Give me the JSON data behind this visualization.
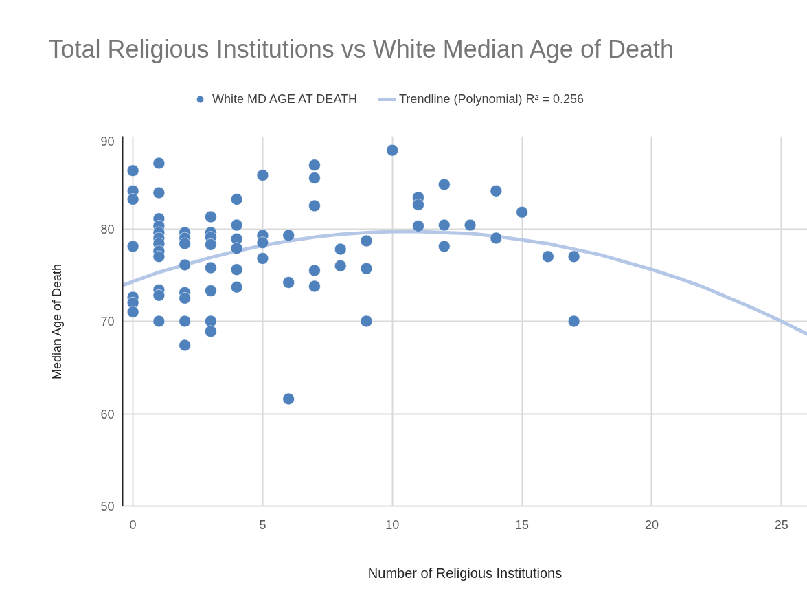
{
  "chart_data": {
    "type": "scatter",
    "title": "Total Religious Institutions vs White Median Age of Death",
    "xlabel": "Number of Religious Institutions",
    "ylabel": "Median Age of Death",
    "xlim": [
      -0.4,
      26
    ],
    "ylim": [
      50,
      90
    ],
    "xticks": [
      0,
      5,
      10,
      15,
      20,
      25
    ],
    "yticks": [
      50,
      60,
      70,
      80,
      90
    ],
    "grid": true,
    "legend": "top",
    "series": [
      {
        "name": "White MD AGE AT DEATH",
        "color": "#4f81bd",
        "marker": "circle",
        "x": [
          0,
          0,
          0,
          0,
          0,
          0,
          0,
          1,
          1,
          1,
          1,
          1,
          1,
          1,
          1,
          1,
          1,
          1,
          1,
          2,
          2,
          2,
          2,
          2,
          2,
          2,
          2,
          3,
          3,
          3,
          3,
          3,
          3,
          3,
          3,
          4,
          4,
          4,
          4,
          4,
          4,
          5,
          5,
          5,
          5,
          6,
          6,
          6,
          7,
          7,
          7,
          7,
          7,
          8,
          8,
          9,
          9,
          9,
          10,
          11,
          11,
          11,
          12,
          12,
          12,
          13,
          14,
          14,
          15,
          16,
          17,
          17
        ],
        "values": [
          86.3,
          84.1,
          83.2,
          78.1,
          72.6,
          72.0,
          71.0,
          87.1,
          83.9,
          81.1,
          80.3,
          79.6,
          79.0,
          78.4,
          77.6,
          77.0,
          73.4,
          72.8,
          70.0,
          79.6,
          79.0,
          78.4,
          76.1,
          73.1,
          72.5,
          70.0,
          67.4,
          81.3,
          79.6,
          79.1,
          78.3,
          75.8,
          73.3,
          70.0,
          68.9,
          83.2,
          80.4,
          78.9,
          77.9,
          75.6,
          73.7,
          85.8,
          79.3,
          78.5,
          76.8,
          79.3,
          74.2,
          61.6,
          86.9,
          85.5,
          82.5,
          75.5,
          73.8,
          77.8,
          76.0,
          78.7,
          75.7,
          70.0,
          88.5,
          83.4,
          82.6,
          80.3,
          84.8,
          80.4,
          78.1,
          80.4,
          84.1,
          79.0,
          81.8,
          77.0,
          77.0,
          70.0
        ]
      },
      {
        "name": "Trendline (Polynomial) R² = 0.256",
        "color": "#b4c7e7",
        "type": "line",
        "marker": "none",
        "x": [
          -0.4,
          0,
          1,
          2,
          3,
          4,
          5,
          6,
          7,
          8,
          9,
          10,
          11,
          12,
          13,
          14,
          15,
          16,
          17,
          18,
          19,
          20,
          21,
          22,
          23,
          24,
          25,
          26
        ],
        "values": [
          73.9,
          74.3,
          75.3,
          76.1,
          76.9,
          77.6,
          78.2,
          78.7,
          79.1,
          79.4,
          79.6,
          79.7,
          79.7,
          79.6,
          79.5,
          79.2,
          78.8,
          78.4,
          77.8,
          77.2,
          76.4,
          75.6,
          74.7,
          73.7,
          72.5,
          71.3,
          70.0,
          68.6
        ]
      }
    ]
  }
}
